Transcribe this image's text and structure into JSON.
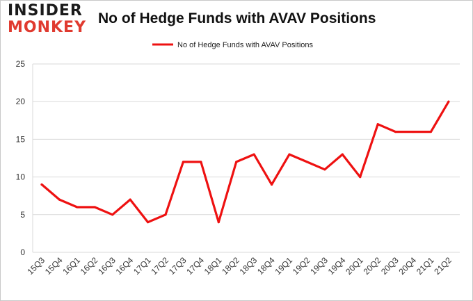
{
  "logo": {
    "line1": "INSIDER",
    "line2": "MONKEY"
  },
  "chart_data": {
    "type": "line",
    "title": "No of Hedge Funds with AVAV Positions",
    "legend": "No of Hedge Funds with AVAV Positions",
    "legend_position": "top-center",
    "xlabel": "",
    "ylabel": "",
    "ylim": [
      0,
      25
    ],
    "yticks": [
      0,
      5,
      10,
      15,
      20,
      25
    ],
    "grid": true,
    "line_color": "#ee1111",
    "categories": [
      "15Q3",
      "15Q4",
      "16Q1",
      "16Q2",
      "16Q3",
      "16Q4",
      "17Q1",
      "17Q2",
      "17Q3",
      "17Q4",
      "18Q1",
      "18Q2",
      "18Q3",
      "18Q4",
      "19Q1",
      "19Q2",
      "19Q3",
      "19Q4",
      "20Q1",
      "20Q2",
      "20Q3",
      "20Q4",
      "21Q1",
      "21Q2"
    ],
    "values": [
      9,
      7,
      6,
      6,
      5,
      7,
      4,
      5,
      12,
      12,
      4,
      12,
      13,
      9,
      13,
      12,
      11,
      13,
      10,
      17,
      16,
      16,
      16,
      20
    ]
  }
}
